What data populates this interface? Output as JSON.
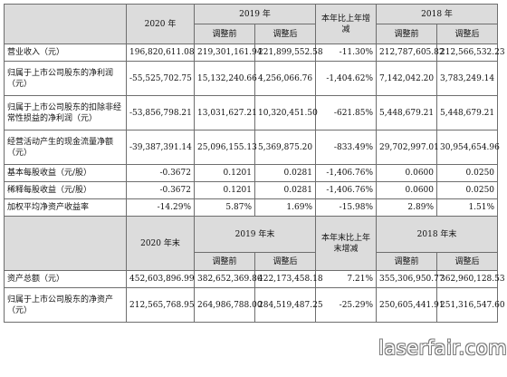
{
  "header1": {
    "col_2020": "2020 年",
    "col_2019": "2019 年",
    "col_change": "本年比上年增减",
    "col_2018": "2018 年",
    "adj_before": "调整前",
    "adj_after": "调整后"
  },
  "rows1": [
    {
      "label": "营业收入（元）",
      "v2020": "196,820,611.08",
      "v2019b": "219,301,161.94",
      "v2019a": "221,899,552.58",
      "chg": "-11.30%",
      "v2018b": "212,787,605.82",
      "v2018a": "212,566,532.23"
    },
    {
      "label": "归属于上市公司股东的净利润（元）",
      "v2020": "-55,525,702.75",
      "v2019b": "15,132,240.66",
      "v2019a": "4,256,066.76",
      "chg": "-1,404.62%",
      "v2018b": "7,142,042.20",
      "v2018a": "3,783,249.14"
    },
    {
      "label": "归属于上市公司股东的扣除非经常性损益的净利润（元）",
      "v2020": "-53,856,798.21",
      "v2019b": "13,031,627.21",
      "v2019a": "10,320,451.50",
      "chg": "-621.85%",
      "v2018b": "5,448,679.21",
      "v2018a": "5,448,679.21"
    },
    {
      "label": "经营活动产生的现金流量净额（元）",
      "v2020": "-39,387,391.14",
      "v2019b": "25,096,155.13",
      "v2019a": "5,369,875.20",
      "chg": "-833.49%",
      "v2018b": "29,702,997.01",
      "v2018a": "30,954,654.96"
    },
    {
      "label": "基本每股收益（元/股）",
      "v2020": "-0.3672",
      "v2019b": "0.1201",
      "v2019a": "0.0281",
      "chg": "-1,406.76%",
      "v2018b": "0.0600",
      "v2018a": "0.0250"
    },
    {
      "label": "稀释每股收益（元/股）",
      "v2020": "-0.3672",
      "v2019b": "0.1201",
      "v2019a": "0.0281",
      "chg": "-1,406.76%",
      "v2018b": "0.0600",
      "v2018a": "0.0250"
    },
    {
      "label": "加权平均净资产收益率",
      "v2020": "-14.29%",
      "v2019b": "5.87%",
      "v2019a": "1.69%",
      "chg": "-15.98%",
      "v2018b": "2.89%",
      "v2018a": "1.51%"
    }
  ],
  "header2": {
    "col_2020": "2020 年末",
    "col_2019": "2019 年末",
    "col_change": "本年末比上年末增减",
    "col_2018": "2018 年末",
    "adj_before": "调整前",
    "adj_after": "调整后"
  },
  "rows2": [
    {
      "label": "资产总额（元）",
      "v2020": "452,603,896.99",
      "v2019b": "382,652,369.80",
      "v2019a": "422,173,458.18",
      "chg": "7.21%",
      "v2018b": "355,306,950.77",
      "v2018a": "362,960,128.53"
    },
    {
      "label": "归属于上市公司股东的净资产（元）",
      "v2020": "212,565,768.95",
      "v2019b": "264,986,788.00",
      "v2019a": "284,519,487.25",
      "chg": "-25.29%",
      "v2018b": "250,605,441.91",
      "v2018a": "251,316,547.60"
    }
  ],
  "watermark": "laserfair.com"
}
